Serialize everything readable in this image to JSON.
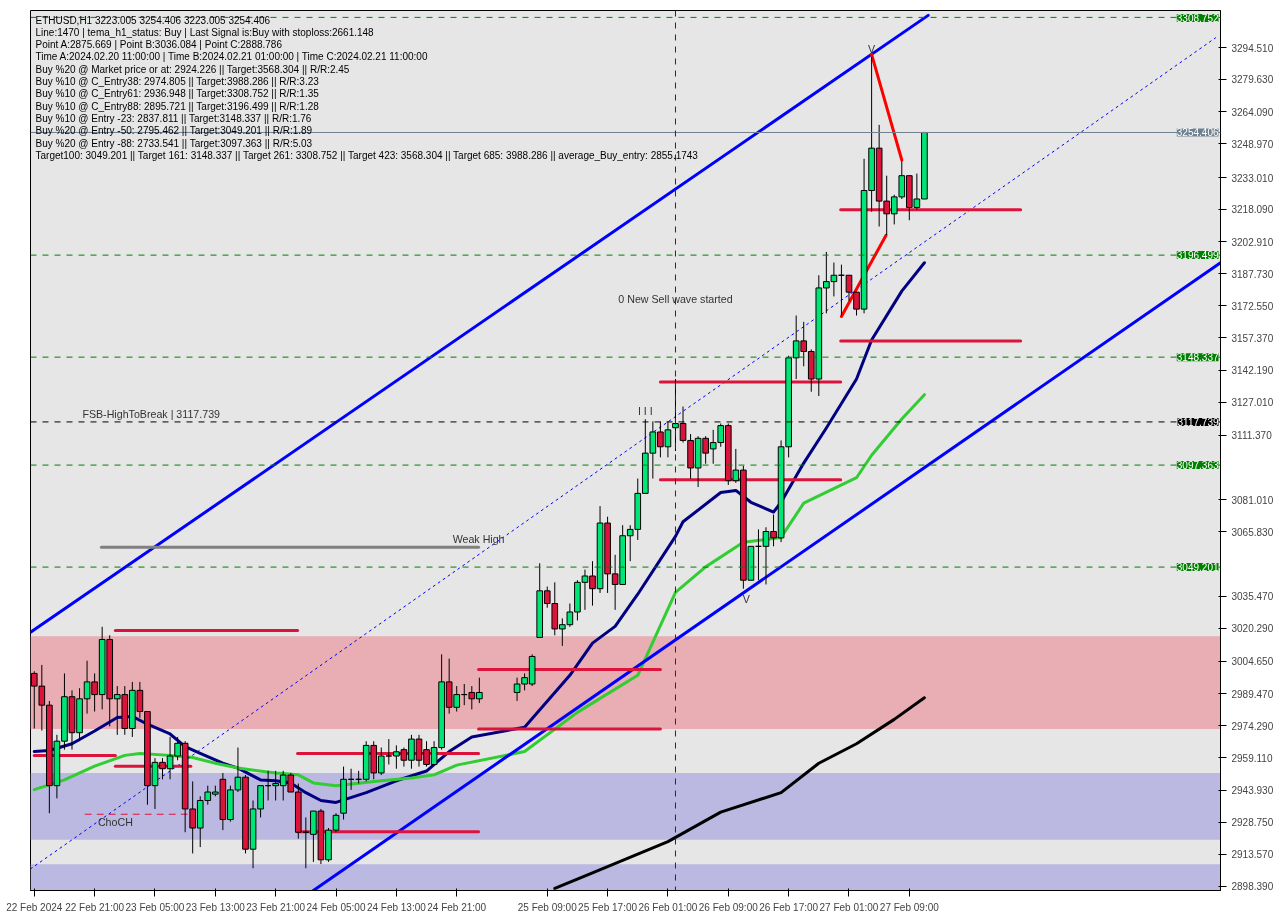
{
  "chart_data": {
    "type": "candlestick",
    "x": [
      "2024-02-22T13:00",
      "2024-02-22T14:00",
      "2024-02-22T15:00",
      "2024-02-22T16:00",
      "2024-02-22T17:00",
      "2024-02-22T18:00",
      "2024-02-22T19:00",
      "2024-02-22T20:00",
      "2024-02-22T21:00",
      "2024-02-22T22:00",
      "2024-02-22T23:00",
      "2024-02-23T00:00",
      "2024-02-23T01:00",
      "2024-02-23T02:00",
      "2024-02-23T03:00",
      "2024-02-23T04:00",
      "2024-02-23T05:00",
      "2024-02-23T06:00",
      "2024-02-23T07:00",
      "2024-02-23T08:00",
      "2024-02-23T09:00",
      "2024-02-23T10:00",
      "2024-02-23T11:00",
      "2024-02-23T12:00",
      "2024-02-23T13:00",
      "2024-02-23T14:00",
      "2024-02-23T15:00",
      "2024-02-23T16:00",
      "2024-02-23T17:00",
      "2024-02-23T18:00",
      "2024-02-23T19:00",
      "2024-02-23T20:00",
      "2024-02-23T21:00",
      "2024-02-23T22:00",
      "2024-02-23T23:00",
      "2024-02-24T00:00",
      "2024-02-24T01:00",
      "2024-02-24T02:00",
      "2024-02-24T03:00",
      "2024-02-24T04:00",
      "2024-02-24T05:00",
      "2024-02-24T06:00",
      "2024-02-24T07:00",
      "2024-02-24T08:00",
      "2024-02-24T09:00",
      "2024-02-24T10:00",
      "2024-02-24T11:00",
      "2024-02-24T12:00",
      "2024-02-24T13:00",
      "2024-02-24T14:00",
      "2024-02-24T15:00",
      "2024-02-24T16:00",
      "2024-02-24T17:00",
      "2024-02-24T18:00",
      "2024-02-24T19:00",
      "2024-02-24T20:00",
      "2024-02-24T21:00",
      "2024-02-24T22:00",
      "2024-02-24T23:00",
      "2024-02-25T00:00",
      "2024-02-25T05:00",
      "2024-02-25T06:00",
      "2024-02-25T07:00",
      "2024-02-25T08:00",
      "2024-02-25T09:00",
      "2024-02-25T10:00",
      "2024-02-25T11:00",
      "2024-02-25T12:00",
      "2024-02-25T13:00",
      "2024-02-25T14:00",
      "2024-02-25T15:00",
      "2024-02-25T16:00",
      "2024-02-25T17:00",
      "2024-02-25T18:00",
      "2024-02-25T19:00",
      "2024-02-25T20:00",
      "2024-02-25T21:00",
      "2024-02-25T22:00",
      "2024-02-25T23:00",
      "2024-02-26T00:00",
      "2024-02-26T01:00",
      "2024-02-26T02:00",
      "2024-02-26T03:00",
      "2024-02-26T04:00",
      "2024-02-26T05:00",
      "2024-02-26T06:00",
      "2024-02-26T07:00",
      "2024-02-26T08:00",
      "2024-02-26T09:00",
      "2024-02-26T10:00",
      "2024-02-26T11:00",
      "2024-02-26T12:00",
      "2024-02-26T13:00",
      "2024-02-26T14:00",
      "2024-02-26T15:00",
      "2024-02-26T16:00",
      "2024-02-26T17:00",
      "2024-02-26T18:00",
      "2024-02-26T19:00",
      "2024-02-26T20:00",
      "2024-02-26T21:00",
      "2024-02-26T22:00",
      "2024-02-26T23:00",
      "2024-02-27T00:00",
      "2024-02-27T01:00",
      "2024-02-27T02:00",
      "2024-02-27T03:00",
      "2024-02-27T04:00",
      "2024-02-27T05:00",
      "2024-02-27T06:00",
      "2024-02-27T07:00",
      "2024-02-27T08:00",
      "2024-02-27T09:00",
      "2024-02-27T10:00",
      "2024-02-27T11:00"
    ],
    "ohlc": [
      [
        2999,
        3000,
        2973,
        2993
      ],
      [
        2993,
        3003,
        2972,
        2984
      ],
      [
        2984,
        2986,
        2933,
        2946
      ],
      [
        2946,
        2970,
        2940,
        2967
      ],
      [
        2967,
        2999,
        2963,
        2988
      ],
      [
        2988,
        2991,
        2963,
        2971
      ],
      [
        2971,
        2992,
        2967,
        2987
      ],
      [
        2987,
        3005,
        2980,
        2995
      ],
      [
        2995,
        2999,
        2981,
        2989
      ],
      [
        2989,
        3021,
        2982,
        3015
      ],
      [
        3015,
        3017,
        2974,
        2987
      ],
      [
        2987,
        2993,
        2970,
        2989
      ],
      [
        2989,
        2993,
        2970,
        2973
      ],
      [
        2973,
        2995,
        2969,
        2991
      ],
      [
        2991,
        2995,
        2978,
        2981
      ],
      [
        2981,
        2981,
        2937,
        2946
      ],
      [
        2946,
        2959,
        2935,
        2957
      ],
      [
        2957,
        2959,
        2949,
        2954
      ],
      [
        2954,
        2969,
        2949,
        2960
      ],
      [
        2960,
        2969,
        2958,
        2966
      ],
      [
        2966,
        2967,
        2924,
        2935
      ],
      [
        2935,
        2948,
        2914,
        2926
      ],
      [
        2926,
        2941,
        2917,
        2939
      ],
      [
        2939,
        2946,
        2937,
        2943
      ],
      [
        2942,
        2946,
        2941,
        2943
      ],
      [
        2949,
        2952,
        2925,
        2930
      ],
      [
        2930,
        2946,
        2929,
        2944
      ],
      [
        2944,
        2964,
        2943,
        2950
      ],
      [
        2950,
        2951,
        2914,
        2916
      ],
      [
        2916,
        2939,
        2907,
        2935
      ],
      [
        2935,
        2946,
        2931,
        2946
      ],
      [
        2946,
        2953,
        2939,
        2946
      ],
      [
        2946,
        2953,
        2939,
        2947
      ],
      [
        2946,
        2953,
        2939,
        2951
      ],
      [
        2951,
        2952,
        2943,
        2943
      ],
      [
        2943,
        2947,
        2921,
        2924
      ],
      [
        2924,
        2931,
        2907,
        2924
      ],
      [
        2923,
        2934,
        2910,
        2934
      ],
      [
        2934,
        2935,
        2909,
        2911
      ],
      [
        2911,
        2926,
        2910,
        2925
      ],
      [
        2925,
        2933,
        2924,
        2932
      ],
      [
        2933,
        2955,
        2930,
        2949
      ],
      [
        2949,
        2954,
        2944,
        2949
      ],
      [
        2949,
        2953,
        2947,
        2949
      ],
      [
        2949,
        2967,
        2948,
        2965
      ],
      [
        2965,
        2967,
        2949,
        2952
      ],
      [
        2952,
        2964,
        2951,
        2960
      ],
      [
        2960,
        2968,
        2956,
        2960
      ],
      [
        2960,
        2965,
        2954,
        2962
      ],
      [
        2963,
        2964,
        2955,
        2958
      ],
      [
        2958,
        2970,
        2954,
        2968
      ],
      [
        2968,
        2970,
        2955,
        2958
      ],
      [
        2963,
        2967,
        2955,
        2956
      ],
      [
        2956,
        2967,
        2956,
        2964
      ],
      [
        2964,
        3008,
        2963,
        2995
      ],
      [
        2995,
        3006,
        2980,
        2983
      ],
      [
        2983,
        2993,
        2981,
        2989
      ],
      [
        2989,
        2994,
        2984,
        2989
      ],
      [
        2990,
        2993,
        2982,
        2987
      ],
      [
        2987,
        2997,
        2985,
        2990
      ],
      [
        2990,
        2997,
        2986,
        2994
      ],
      [
        2994,
        2999,
        2991,
        2997
      ],
      [
        2994,
        3008,
        2993,
        3007
      ],
      [
        3016,
        3051,
        3016,
        3038
      ],
      [
        3038,
        3040,
        3030,
        3032
      ],
      [
        3032,
        3042,
        3017,
        3020
      ],
      [
        3020,
        3025,
        3012,
        3022
      ],
      [
        3022,
        3032,
        3021,
        3028
      ],
      [
        3028,
        3043,
        3024,
        3042
      ],
      [
        3042,
        3048,
        3029,
        3045
      ],
      [
        3045,
        3052,
        3031,
        3039
      ],
      [
        3039,
        3078,
        3037,
        3070
      ],
      [
        3070,
        3073,
        3037,
        3046
      ],
      [
        3046,
        3055,
        3029,
        3041
      ],
      [
        3041,
        3069,
        3041,
        3064
      ],
      [
        3064,
        3069,
        3052,
        3067
      ],
      [
        3067,
        3091,
        3062,
        3084
      ],
      [
        3084,
        3119,
        3084,
        3103
      ],
      [
        3103,
        3118,
        3091,
        3113
      ],
      [
        3113,
        3118,
        3101,
        3106
      ],
      [
        3106,
        3118,
        3101,
        3114
      ],
      [
        3115,
        3138,
        3104,
        3117
      ],
      [
        3117,
        3125,
        3108,
        3109
      ],
      [
        3109,
        3112,
        3091,
        3096
      ],
      [
        3096,
        3111,
        3087,
        3110
      ],
      [
        3110,
        3111,
        3098,
        3103
      ],
      [
        3105,
        3114,
        3098,
        3108
      ],
      [
        3108,
        3117,
        3106,
        3116
      ],
      [
        3116,
        3117,
        3088,
        3090
      ],
      [
        3090,
        3105,
        3089,
        3095
      ],
      [
        3095,
        3097,
        3039,
        3043
      ],
      [
        3043,
        3059,
        3043,
        3059
      ],
      [
        3059,
        3067,
        3043,
        3059
      ],
      [
        3059,
        3068,
        3041,
        3066
      ],
      [
        3066,
        3074,
        3059,
        3063
      ],
      [
        3063,
        3109,
        3061,
        3106
      ],
      [
        3106,
        3149,
        3101,
        3148
      ],
      [
        3148,
        3168,
        3138,
        3156
      ],
      [
        3156,
        3165,
        3144,
        3151
      ],
      [
        3151,
        3152,
        3132,
        3138
      ],
      [
        3138,
        3187,
        3130,
        3181
      ],
      [
        3181,
        3198,
        3169,
        3184
      ],
      [
        3184,
        3193,
        3177,
        3187
      ],
      [
        3187,
        3192,
        3168,
        3187
      ],
      [
        3187,
        3187,
        3175,
        3179
      ],
      [
        3179,
        3179,
        3168,
        3171
      ],
      [
        3171,
        3242,
        3169,
        3227
      ],
      [
        3227,
        3290,
        3217,
        3247
      ],
      [
        3247,
        3258,
        3210,
        3222
      ],
      [
        3222,
        3234,
        3206,
        3216
      ],
      [
        3216,
        3225,
        3211,
        3224
      ],
      [
        3224,
        3241,
        3223,
        3234
      ],
      [
        3234,
        3234,
        3213,
        3219
      ],
      [
        3219,
        3235,
        3218,
        3223
      ],
      [
        3223.005,
        3254.406,
        3223.005,
        3254.406
      ]
    ],
    "colors": [
      "#dc143c",
      "#dc143c",
      "#dc143c",
      "#00e676",
      "#00e676",
      "#dc143c",
      "#00e676",
      "#00e676",
      "#dc143c",
      "#00e676",
      "#dc143c",
      "#00e676",
      "#dc143c",
      "#00e676",
      "#dc143c",
      "#dc143c",
      "#00e676",
      "#dc143c",
      "#00e676",
      "#00e676",
      "#dc143c",
      "#dc143c",
      "#00e676",
      "#00e676",
      "#00e676",
      "#dc143c",
      "#00e676",
      "#00e676",
      "#dc143c",
      "#00e676",
      "#00e676",
      "#000000",
      "#00e676",
      "#00e676",
      "#dc143c",
      "#dc143c",
      "#000000",
      "#00e676",
      "#dc143c",
      "#00e676",
      "#00e676",
      "#00e676",
      "#000000",
      "#000000",
      "#00e676",
      "#dc143c",
      "#00e676",
      "#000000",
      "#00e676",
      "#dc143c",
      "#00e676",
      "#dc143c",
      "#dc143c",
      "#00e676",
      "#00e676",
      "#dc143c",
      "#00e676",
      "#000000",
      "#dc143c",
      "#00e676",
      "#00e676",
      "#00e676",
      "#00e676",
      "#00e676",
      "#dc143c",
      "#dc143c",
      "#00e676",
      "#00e676",
      "#00e676",
      "#00e676",
      "#dc143c",
      "#00e676",
      "#dc143c",
      "#dc143c",
      "#00e676",
      "#00e676",
      "#00e676",
      "#00e676",
      "#00e676",
      "#dc143c",
      "#00e676",
      "#00e676",
      "#dc143c",
      "#dc143c",
      "#00e676",
      "#dc143c",
      "#00e676",
      "#00e676",
      "#dc143c",
      "#00e676",
      "#dc143c",
      "#00e676",
      "#000000",
      "#00e676",
      "#dc143c",
      "#00e676",
      "#00e676",
      "#00e676",
      "#dc143c",
      "#dc143c",
      "#00e676",
      "#00e676",
      "#00e676",
      "#000000",
      "#dc143c",
      "#dc143c",
      "#00e676",
      "#00e676",
      "#dc143c",
      "#dc143c",
      "#00e676",
      "#00e676",
      "#dc143c",
      "#00e676",
      "#00e676"
    ],
    "series": [
      {
        "type": "line",
        "color": "#000080",
        "x": [
          "2024-02-22T13:00",
          "2024-02-22T15:00",
          "2024-02-22T18:00",
          "2024-02-22T21:00",
          "2024-02-23T00:00",
          "2024-02-23T02:00",
          "2024-02-23T04:00",
          "2024-02-23T07:00",
          "2024-02-23T09:00",
          "2024-02-23T11:00",
          "2024-02-23T14:00",
          "2024-02-23T16:00",
          "2024-02-23T19:00",
          "2024-02-23T21:00",
          "2024-02-23T23:00",
          "2024-02-24T01:00",
          "2024-02-24T03:00",
          "2024-02-24T05:00",
          "2024-02-24T09:00",
          "2024-02-24T13:00",
          "2024-02-24T17:00",
          "2024-02-24T20:00",
          "2024-02-24T23:00",
          "2024-02-25T06:00",
          "2024-02-25T12:00",
          "2024-02-25T15:00",
          "2024-02-25T18:00",
          "2024-02-25T21:00",
          "2024-02-26T02:00",
          "2024-02-26T03:00",
          "2024-02-26T08:00",
          "2024-02-26T10:00",
          "2024-02-26T12:00",
          "2024-02-26T15:00",
          "2024-02-26T16:00",
          "2024-02-26T19:00",
          "2024-02-26T22:00",
          "2024-02-27T02:00",
          "2024-02-27T04:00",
          "2024-02-27T08:00",
          "2024-02-27T11:00"
        ],
        "values": [
          2962.1,
          2962.6,
          2965.8,
          2971.8,
          2978.2,
          2978.7,
          2975.0,
          2970.4,
          2964.4,
          2961.2,
          2956.6,
          2954.3,
          2948.7,
          2948.3,
          2947.3,
          2942.7,
          2939.0,
          2938.1,
          2942.7,
          2948.3,
          2952.9,
          2962.1,
          2969.0,
          2973.6,
          2998.1,
          3013.3,
          3021.2,
          3036.4,
          3063.7,
          3070.6,
          3084.4,
          3085.4,
          3079.8,
          3075.2,
          3079.8,
          3098.3,
          3114.9,
          3138.0,
          3156.4,
          3179.5,
          3192.9
        ]
      },
      {
        "type": "line",
        "color": "#32cd32",
        "x": [
          "2024-02-22T13:00",
          "2024-02-22T17:00",
          "2024-02-22T21:00",
          "2024-02-23T01:00",
          "2024-02-23T03:00",
          "2024-02-23T07:00",
          "2024-02-23T10:00",
          "2024-02-23T13:00",
          "2024-02-23T16:00",
          "2024-02-23T21:00",
          "2024-02-24T00:00",
          "2024-02-24T02:00",
          "2024-02-24T05:00",
          "2024-02-24T11:00",
          "2024-02-24T15:00",
          "2024-02-24T18:00",
          "2024-02-24T21:00",
          "2024-02-25T06:00",
          "2024-02-25T13:00",
          "2024-02-25T21:00",
          "2024-02-26T02:00",
          "2024-02-26T06:00",
          "2024-02-26T11:00",
          "2024-02-26T16:00",
          "2024-02-26T19:00",
          "2024-02-27T02:00",
          "2024-02-27T04:00",
          "2024-02-27T08:00",
          "2024-02-27T11:00"
        ],
        "values": [
          2944.1,
          2948.7,
          2955.2,
          2960.3,
          2961.2,
          2960.3,
          2959.3,
          2956.6,
          2954.3,
          2952.0,
          2951.1,
          2947.3,
          2946.0,
          2948.3,
          2949.6,
          2951.1,
          2955.7,
          2962.1,
          2980.6,
          2998.1,
          3037.3,
          3049.3,
          3060.9,
          3063.2,
          3079.4,
          3091.4,
          3102.0,
          3119.1,
          3130.6
        ]
      },
      {
        "type": "line",
        "color": "#000000",
        "x": [
          "2024-02-25T10:00",
          "2024-02-25T15:00",
          "2024-02-26T01:00",
          "2024-02-26T08:00",
          "2024-02-26T16:00",
          "2024-02-26T21:00",
          "2024-02-27T02:00",
          "2024-02-27T07:00",
          "2024-02-27T11:00"
        ],
        "values": [
          2897.5,
          2904.8,
          2919.6,
          2933.5,
          2942.7,
          2956.6,
          2965.8,
          2977.3,
          2987.5
        ]
      },
      {
        "type": "line",
        "color": "#0000ff",
        "x": [
          "2024-02-22T12:30",
          "2024-02-27T11:30"
        ],
        "values": [
          3018.4,
          3309.7
        ]
      },
      {
        "type": "line",
        "color": "#0000ff",
        "x": [
          "2024-02-24T02:00",
          "2024-02-29T02:15"
        ],
        "values": [
          2896.5,
          3192.9
        ]
      },
      {
        "type": "line",
        "color": "#0000ff",
        "line_style": "dotted",
        "x": [
          "2024-02-22T12:30",
          "2024-02-29T01:36"
        ],
        "values": [
          2906.7,
          3299.1
        ]
      },
      {
        "type": "line",
        "color": "#ff0000",
        "x": [
          "2024-02-27T00:00",
          "2024-02-27T05:54",
          null,
          "2024-02-27T04:00",
          "2024-02-27T08:00"
        ],
        "values": [
          3167.5,
          3205.8,
          null,
          3291.3,
          3241.4
        ]
      },
      {
        "type": "line",
        "color": "#dc143c",
        "x": [
          "2024-02-26T23:54",
          "2024-02-27T23:45"
        ],
        "values": [
          3217.9,
          3217.9
        ]
      },
      {
        "type": "line",
        "color": "#dc143c",
        "x": [
          "2024-02-26T23:54",
          "2024-02-27T23:45"
        ],
        "values": [
          3156.0,
          3156.0
        ]
      },
      {
        "type": "line",
        "color": "#dc143c",
        "x": [
          "2024-02-26T00:00",
          "2024-02-26T23:54"
        ],
        "values": [
          3136.6,
          3136.6
        ]
      },
      {
        "type": "line",
        "color": "#dc143c",
        "x": [
          "2024-02-26T00:00",
          "2024-02-26T23:54"
        ],
        "values": [
          3090.4,
          3090.4
        ]
      },
      {
        "type": "line",
        "color": "#dc143c",
        "x": [
          "2024-02-24T23:54",
          "2024-02-26T00:00"
        ],
        "values": [
          3000.8,
          3000.8
        ]
      },
      {
        "type": "line",
        "color": "#dc143c",
        "x": [
          "2024-02-24T23:54",
          "2024-02-26T00:00"
        ],
        "values": [
          2972.7,
          2972.7
        ]
      },
      {
        "type": "line",
        "color": "#dc143c",
        "x": [
          "2024-02-22T23:45",
          "2024-02-23T23:54"
        ],
        "values": [
          3019.3,
          3019.3
        ]
      },
      {
        "type": "line",
        "color": "#dc143c",
        "x": [
          "2024-02-23T23:54",
          "2024-02-24T23:54"
        ],
        "values": [
          2961.2,
          2961.2
        ]
      },
      {
        "type": "line",
        "color": "#dc143c",
        "x": [
          "2024-02-23T23:54",
          "2024-02-24T23:54"
        ],
        "values": [
          2924.2,
          2924.2
        ]
      },
      {
        "type": "line",
        "color": "#dc143c",
        "x": [
          "2024-02-22T13:00",
          "2024-02-22T23:45"
        ],
        "values": [
          2960.3,
          2960.3
        ]
      },
      {
        "type": "line",
        "color": "#dc143c",
        "x": [
          "2024-02-22T23:45",
          "2024-02-23T09:45"
        ],
        "values": [
          2955.2,
          2955.2
        ]
      },
      {
        "type": "line",
        "color": "#808080",
        "x": [
          "2024-02-22T21:54",
          "2024-02-24T23:54"
        ],
        "values": [
          3058.6,
          3058.6
        ]
      },
      {
        "type": "line",
        "color": "#dc143c",
        "line_style": "dashed",
        "x": [
          "2024-02-22T19:45",
          "2024-02-23T09:45"
        ],
        "values": [
          2932.5,
          2932.5
        ]
      }
    ],
    "xlim": [
      "2024-02-22T12:30",
      "2024-02-29T02:15"
    ],
    "xticks": [
      {
        "value": "2024-02-22T13:00",
        "label": "22 Feb 2024"
      },
      {
        "value": "2024-02-22T21:00",
        "label": "22 Feb 21:00"
      },
      {
        "value": "2024-02-23T05:00",
        "label": "23 Feb 05:00"
      },
      {
        "value": "2024-02-23T13:00",
        "label": "23 Feb 13:00"
      },
      {
        "value": "2024-02-23T21:00",
        "label": "23 Feb 21:00"
      },
      {
        "value": "2024-02-24T05:00",
        "label": "24 Feb 05:00"
      },
      {
        "value": "2024-02-24T13:00",
        "label": "24 Feb 13:00"
      },
      {
        "value": "2024-02-24T21:00",
        "label": "24 Feb 21:00"
      },
      {
        "value": "2024-02-25T09:00",
        "label": "25 Feb 09:00"
      },
      {
        "value": "2024-02-25T17:00",
        "label": "25 Feb 17:00"
      },
      {
        "value": "2024-02-26T01:00",
        "label": "26 Feb 01:00"
      },
      {
        "value": "2024-02-26T09:00",
        "label": "26 Feb 09:00"
      },
      {
        "value": "2024-02-26T17:00",
        "label": "26 Feb 17:00"
      },
      {
        "value": "2024-02-27T01:00",
        "label": "27 Feb 01:00"
      },
      {
        "value": "2024-02-27T09:00",
        "label": "27 Feb 09:00"
      }
    ],
    "ylim": [
      2896.5,
      3312
    ],
    "yticks": [
      {
        "value": 3294.51,
        "label": "3294.510"
      },
      {
        "value": 3279.63,
        "label": "3279.630"
      },
      {
        "value": 3264.09,
        "label": "3264.090"
      },
      {
        "value": 3248.97,
        "label": "3248.970"
      },
      {
        "value": 3233.01,
        "label": "3233.010"
      },
      {
        "value": 3218.09,
        "label": "3218.090"
      },
      {
        "value": 3202.91,
        "label": "3202.910"
      },
      {
        "value": 3187.73,
        "label": "3187.730"
      },
      {
        "value": 3172.55,
        "label": "3172.550"
      },
      {
        "value": 3157.37,
        "label": "3157.370"
      },
      {
        "value": 3142.19,
        "label": "3142.190"
      },
      {
        "value": 3127.01,
        "label": "3127.010"
      },
      {
        "value": 3111.37,
        "label": "3111.370"
      },
      {
        "value": 3081.01,
        "label": "3081.010"
      },
      {
        "value": 3065.83,
        "label": "3065.830"
      },
      {
        "value": 3035.47,
        "label": "3035.470"
      },
      {
        "value": 3020.29,
        "label": "3020.290"
      },
      {
        "value": 3004.65,
        "label": "3004.650"
      },
      {
        "value": 2989.47,
        "label": "2989.470"
      },
      {
        "value": 2974.29,
        "label": "2974.290"
      },
      {
        "value": 2959.11,
        "label": "2959.110"
      },
      {
        "value": 2943.93,
        "label": "2943.930"
      },
      {
        "value": 2928.75,
        "label": "2928.750"
      },
      {
        "value": 2913.57,
        "label": "2913.570"
      },
      {
        "value": 2898.39,
        "label": "2898.390"
      }
    ],
    "grid": false,
    "ref_lines": [
      {
        "axis": "y",
        "value": 3308.752,
        "label": "3308.752",
        "color": "#008000",
        "line_style": "dashed"
      },
      {
        "axis": "y",
        "value": 3254.406,
        "label": "3254.406",
        "color": "#708090",
        "line_style": "solid"
      },
      {
        "axis": "y",
        "value": 3196.499,
        "label": "3196.499",
        "color": "#008000",
        "line_style": "dashed"
      },
      {
        "axis": "y",
        "value": 3148.337,
        "label": "3148.337",
        "color": "#008000",
        "line_style": "dashed"
      },
      {
        "axis": "y",
        "value": 3117.739,
        "label": "3117.739",
        "color": "#000000",
        "line_style": "dashed"
      },
      {
        "axis": "y",
        "value": 3097.363,
        "label": "3097.363",
        "color": "#008000",
        "line_style": "dashed"
      },
      {
        "axis": "y",
        "value": 3049.201,
        "label": "3049.201",
        "color": "#008000",
        "line_style": "dashed"
      },
      {
        "axis": "x",
        "value": "2024-02-26T02:00",
        "color": "#8b0000",
        "line_style": "dashed"
      }
    ],
    "bands": [
      {
        "axis": "y",
        "from": 2972.7,
        "to": 3016.6,
        "color": "#e8a0a8"
      },
      {
        "axis": "y",
        "from": 2920.5,
        "to": 2952.0,
        "color": "#b0aee0"
      },
      {
        "axis": "y",
        "from": 2896.5,
        "to": 2908.9,
        "color": "#b0aee0"
      }
    ],
    "annotations": [
      "ETHUSD,H1  3223.005 3254.406 3223.005 3254.406",
      "Line:1470 | tema_h1_status: Buy | Last Signal is:Buy with stoploss:2661.148",
      "Point A:2875.669 | Point B:3036.084 | Point C:2888.786",
      "Time A:2024.02.20 11:00:00 | Time B:2024.02.21 01:00:00 | Time C:2024.02.21 11:00:00",
      "Buy %20 @ Market price or at: 2924.226 || Target:3568.304 || R/R:2.45",
      "Buy %10 @ C_Entry38: 2974.805 || Target:3988.286 || R/R:3.23",
      "Buy %10 @ C_Entry61: 2936.948 || Target:3308.752 || R/R:1.35",
      "Buy %10 @ C_Entry88: 2895.721 || Target:3196.499 || R/R:1.28",
      "Buy %10 @ Entry -23: 2837.811 || Target:3148.337 || R/R:1.76",
      "Buy %20 @ Entry -50: 2795.462 || Target:3049.201 || R/R:1.89",
      "Buy %20 @ Entry -88: 2733.541 || Target:3097.363 || R/R:5.03",
      "Target100: 3049.201 || Target 161: 3148.337 || Target 261: 3308.752 || Target 423: 3568.304 || Target 685: 3988.286 || average_Buy_entry: 2855.1743",
      {
        "text": "0 New Sell wave started",
        "x": "2024-02-26T02:00",
        "y": 3172
      },
      {
        "text": "I I I",
        "x": "2024-02-25T22:00",
        "y": 3119
      },
      {
        "text": "V",
        "x": "2024-02-27T04:00",
        "y": 3290
      },
      {
        "text": "V",
        "x": "2024-02-26T11:24",
        "y": 3038.0
      },
      {
        "text": "Weak High",
        "x": "2024-02-24T23:54",
        "y": 3058.6
      },
      {
        "text": "ChoCH",
        "x": "2024-02-22T23:45",
        "y": 2932.5
      },
      {
        "text": "FSB-HighToBreak | 3117.739",
        "x": "2024-02-23T04:30",
        "y": 3117.739
      }
    ]
  }
}
